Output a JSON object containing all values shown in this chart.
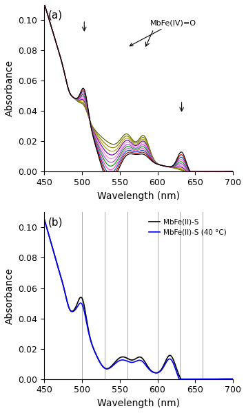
{
  "xlim": [
    450,
    700
  ],
  "ylim_a": [
    0.0,
    0.11
  ],
  "ylim_b": [
    0.0,
    0.11
  ],
  "yticks": [
    0.0,
    0.02,
    0.04,
    0.06,
    0.08,
    0.1
  ],
  "xticks": [
    450,
    500,
    550,
    600,
    650,
    700
  ],
  "xlabel": "Wavelength (nm)",
  "ylabel": "Absorbance",
  "panel_a_label": "(a)",
  "panel_b_label": "(b)",
  "annotation_text": "MbFe(IV)=O",
  "legend_b": [
    "MbFe(II)-S",
    "MbFe(II)-S (40 °C)"
  ],
  "vlines_b": [
    500,
    530,
    560,
    600,
    630,
    660
  ],
  "colors_a": [
    "#000000",
    "#cc0000",
    "#0055cc",
    "#ff44cc",
    "#009900",
    "#aa44ff",
    "#ff88cc",
    "#6600aa",
    "#aaaa00",
    "#887700",
    "#556600"
  ]
}
